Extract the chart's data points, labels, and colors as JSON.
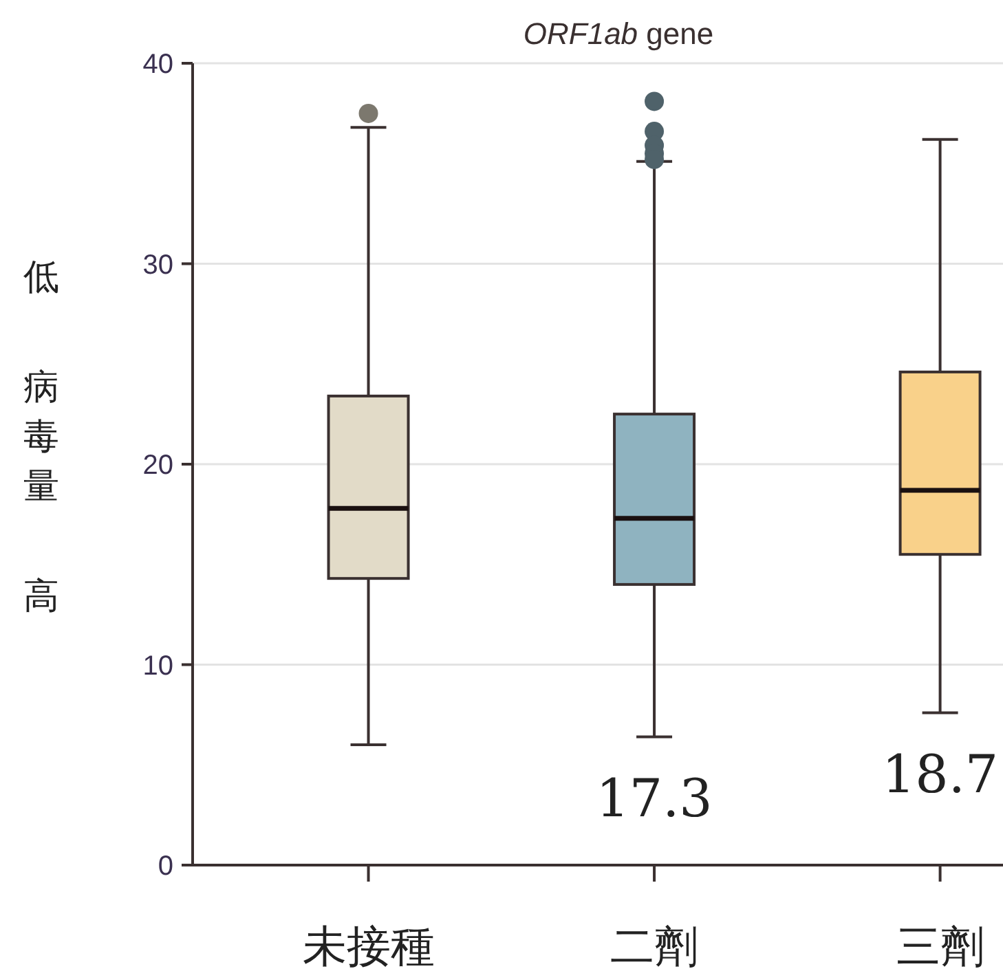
{
  "chart_data": {
    "type": "box",
    "title": "ORF1ab gene",
    "ylabel": "低病毒量高",
    "categories": [
      "未接種",
      "二劑",
      "三劑"
    ],
    "colors": [
      "#e2dbc8",
      "#8fb3c0",
      "#f9d18a"
    ],
    "boxes": [
      {
        "low": 6.0,
        "q1": 14.3,
        "median": 17.8,
        "q3": 23.4,
        "high": 36.8,
        "outliers": [
          37.5
        ]
      },
      {
        "low": 6.4,
        "q1": 14.0,
        "median": 17.3,
        "q3": 22.5,
        "high": 35.1,
        "outliers": [
          38.1,
          36.6,
          35.9,
          35.5,
          35.2
        ]
      },
      {
        "low": 7.6,
        "q1": 15.5,
        "median": 18.7,
        "q3": 24.6,
        "high": 36.2
      }
    ],
    "annotations": [
      "17.3",
      "18.7"
    ],
    "ylim": [
      0,
      40
    ],
    "yticks": [
      0,
      10,
      20,
      30,
      40
    ],
    "grid": "y"
  }
}
